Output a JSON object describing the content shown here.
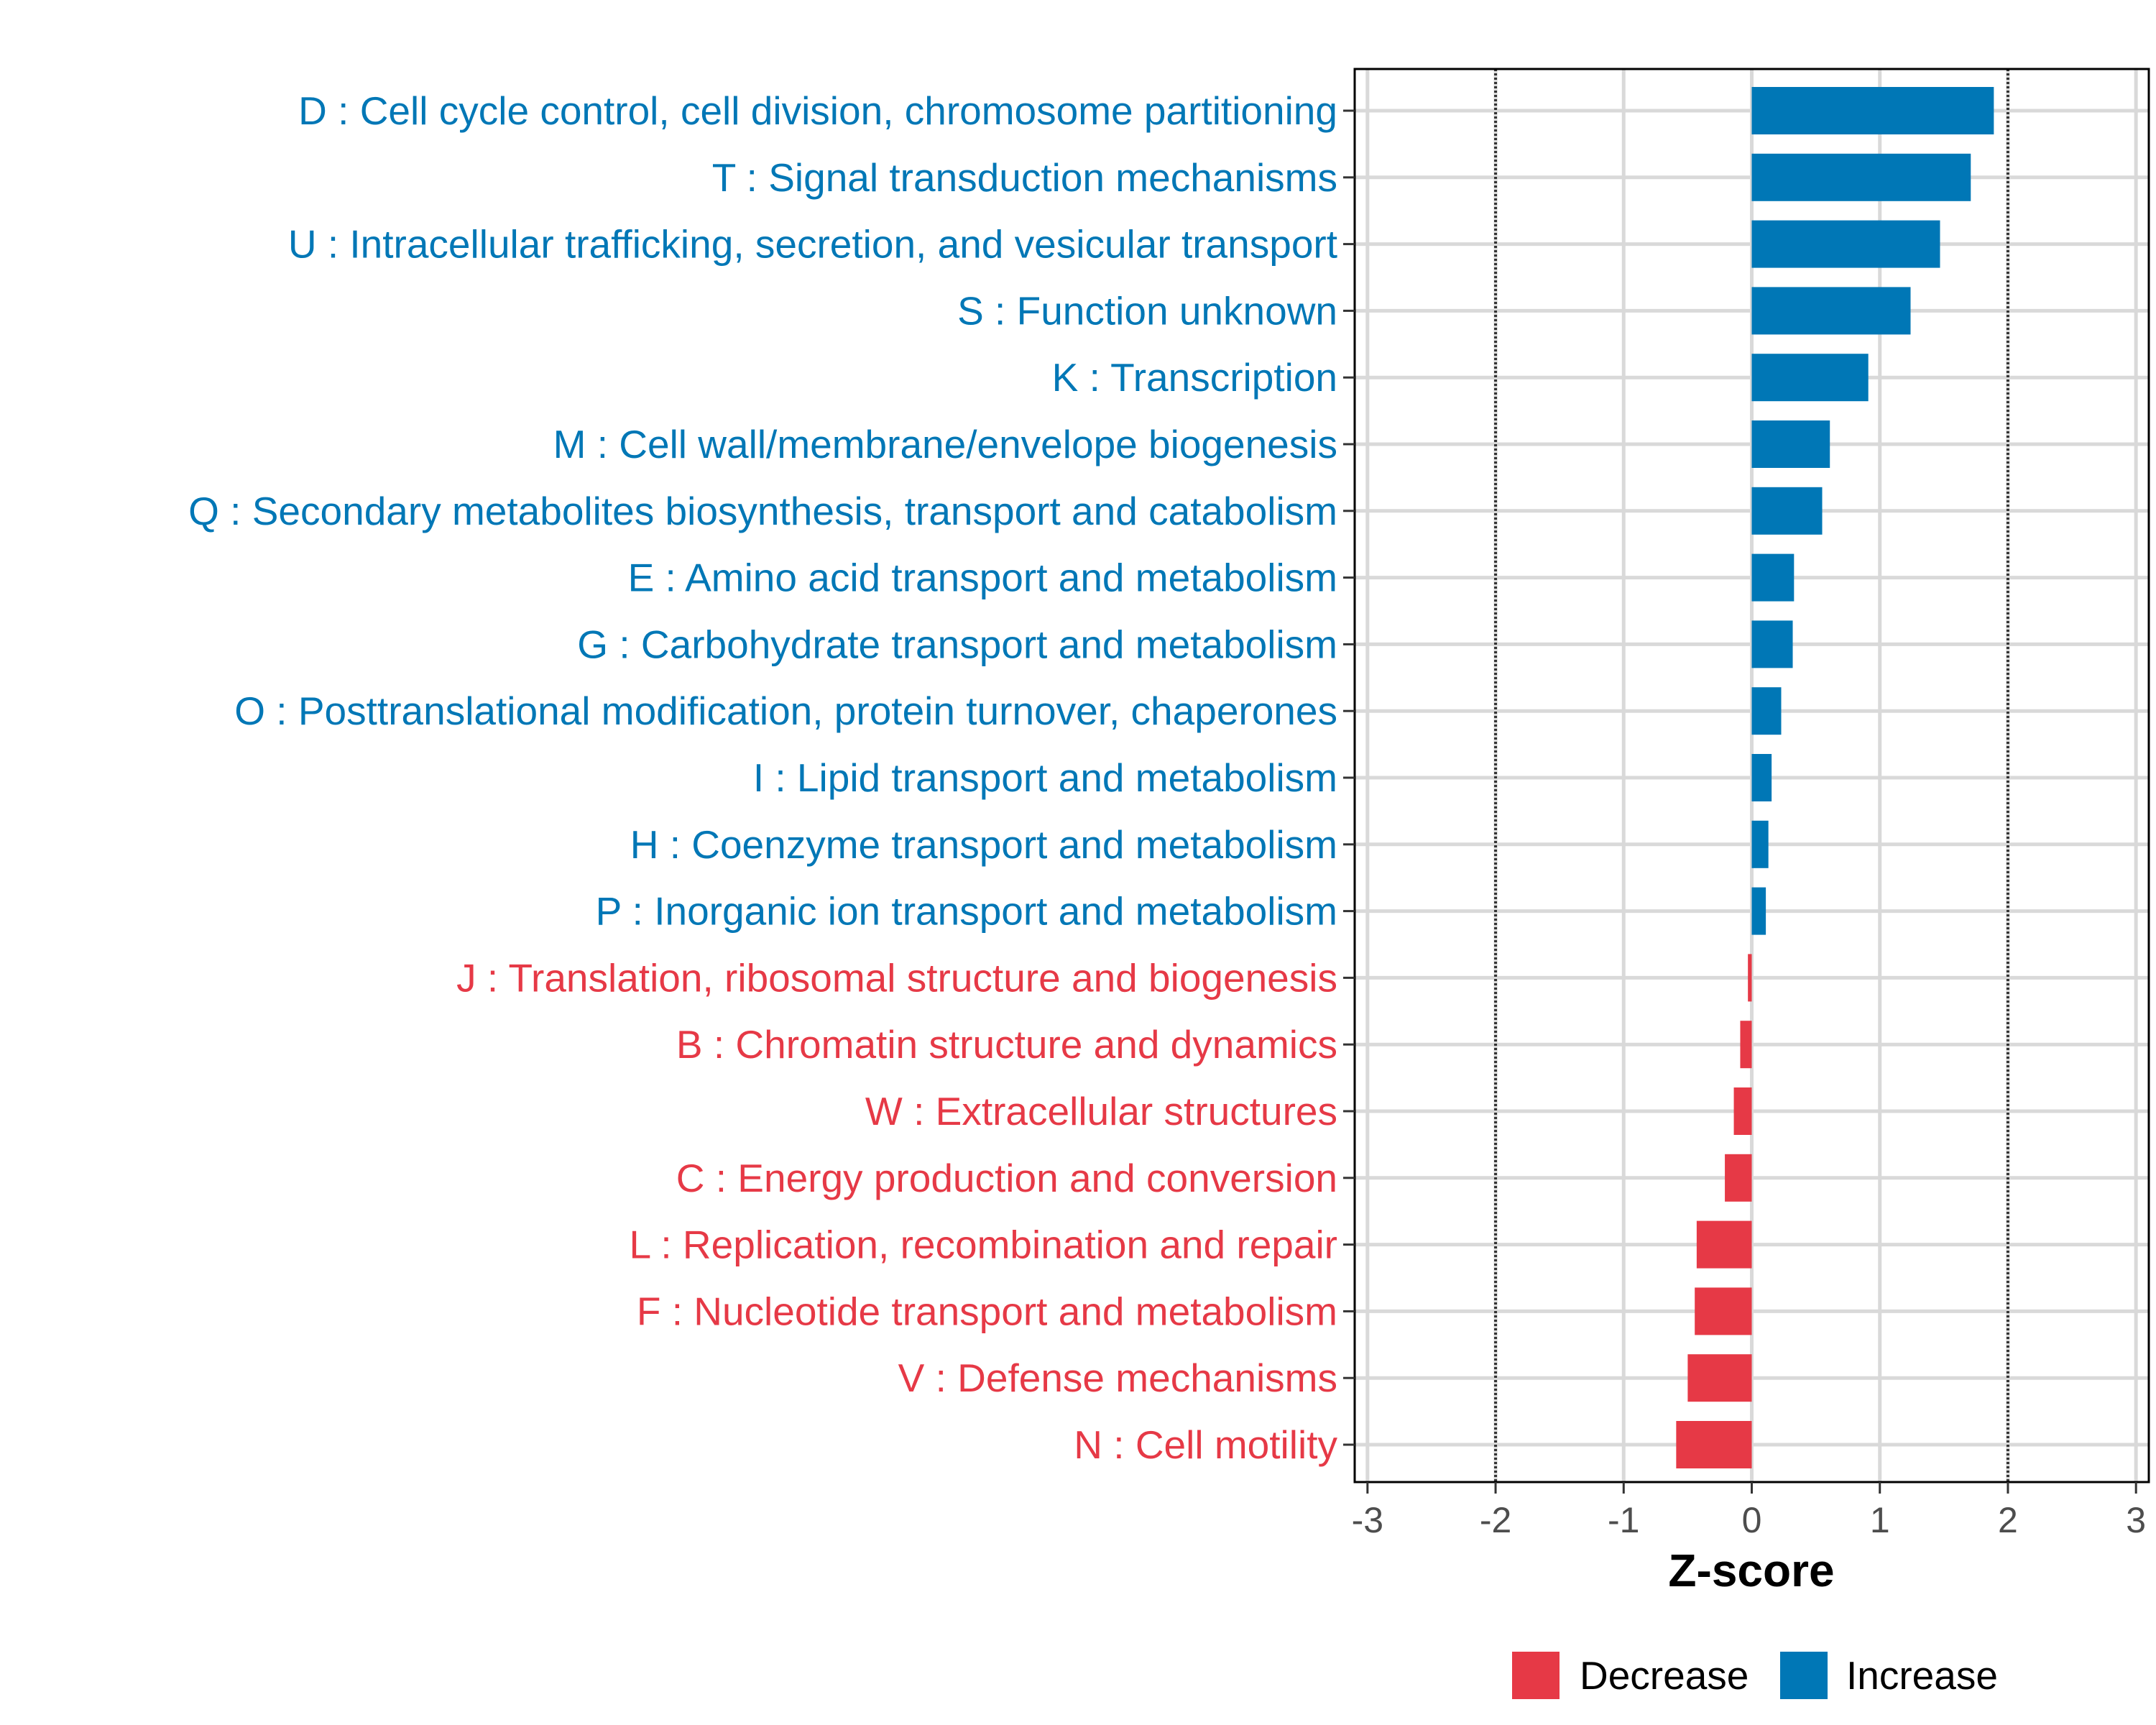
{
  "chart_data": {
    "type": "bar",
    "orientation": "horizontal",
    "xlabel": "Z-score",
    "ylabel": "",
    "xlim": [
      -3.1,
      3.1
    ],
    "xticks": [
      -3,
      -2,
      -1,
      0,
      1,
      2,
      3
    ],
    "reference_lines": [
      -2,
      2
    ],
    "grid": true,
    "legend_position": "bottom",
    "legend": [
      {
        "label": "Decrease",
        "color": "#E63946"
      },
      {
        "label": "Increase",
        "color": "#0077B6"
      }
    ],
    "categories": [
      "D : Cell cycle control, cell division, chromosome partitioning",
      "T : Signal transduction mechanisms",
      "U : Intracellular trafficking, secretion, and vesicular transport",
      "S : Function unknown",
      "K : Transcription",
      "M : Cell wall/membrane/envelope biogenesis",
      "Q : Secondary metabolites biosynthesis, transport and catabolism",
      "E : Amino acid transport and metabolism",
      "G : Carbohydrate transport and metabolism",
      "O : Posttranslational modification, protein turnover, chaperones",
      "I : Lipid transport and metabolism",
      "H : Coenzyme transport and metabolism",
      "P : Inorganic ion transport and metabolism",
      "J : Translation, ribosomal structure and biogenesis",
      "B : Chromatin structure and dynamics",
      "W : Extracellular structures",
      "C : Energy production and conversion",
      "L : Replication, recombination and repair",
      "F : Nucleotide transport and metabolism",
      "V : Defense mechanisms",
      "N : Cell motility"
    ],
    "values": [
      1.89,
      1.71,
      1.47,
      1.24,
      0.91,
      0.61,
      0.55,
      0.33,
      0.32,
      0.23,
      0.155,
      0.13,
      0.11,
      -0.03,
      -0.09,
      -0.14,
      -0.21,
      -0.43,
      -0.445,
      -0.5,
      -0.59
    ]
  }
}
